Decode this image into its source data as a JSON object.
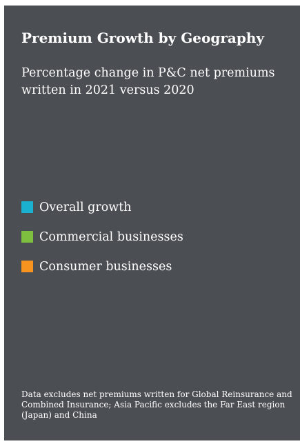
{
  "chart_data": {
    "type": "bar",
    "title": "Premium Growth by Geography",
    "subtitle": "Percentage change in P&C net premiums written in 2021 versus 2020",
    "series": [
      {
        "name": "Overall growth",
        "color": "#1ab0cf"
      },
      {
        "name": "Commercial businesses",
        "color": "#7fbf3f"
      },
      {
        "name": "Consumer businesses",
        "color": "#f7931e"
      }
    ],
    "legend_placement": "left",
    "footnote": "Data excludes net premiums written for Global Reinsurance and Combined Insurance; Asia Pacific excludes the Far East region (Japan) and China"
  },
  "colors": {
    "panel_background": "#4b4e53",
    "text": "#ffffff"
  }
}
